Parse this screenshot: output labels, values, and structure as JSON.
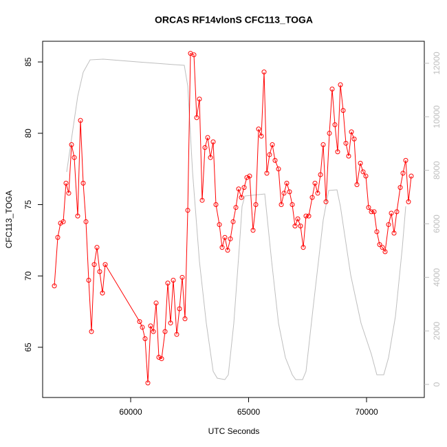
{
  "chart_data": {
    "type": "line",
    "title": "ORCAS RF14vlonS CFC113_TOGA",
    "x_label": "UTC Seconds",
    "y_label": "CFC113_TOGA",
    "xlim": [
      56268,
      72449
    ],
    "xticks": [
      60000,
      65000,
      70000
    ],
    "ylim": [
      61.48,
      86.45
    ],
    "yticks": [
      65,
      70,
      75,
      80,
      85
    ],
    "y2lim": [
      -488,
      12822
    ],
    "y2ticks": [
      0,
      2000,
      4000,
      6000,
      8000,
      10000,
      12000
    ],
    "series": [
      {
        "color": "#ff0000",
        "markers": true,
        "x": [
          56764,
          56909,
          57026,
          57143,
          57259,
          57376,
          57493,
          57609,
          57755,
          57872,
          57988,
          58105,
          58221,
          58338,
          58455,
          58571,
          58688,
          58804,
          58921,
          60379,
          60495,
          60612,
          60729,
          60845,
          60962,
          61079,
          61195,
          61312,
          61458,
          61574,
          61691,
          61807,
          61953,
          62070,
          62186,
          62303,
          62420,
          62536,
          62682,
          62799,
          62915,
          63032,
          63149,
          63265,
          63382,
          63498,
          63615,
          63761,
          63877,
          63994,
          64111,
          64227,
          64344,
          64461,
          64577,
          64694,
          64810,
          64927,
          65044,
          65189,
          65306,
          65423,
          65539,
          65656,
          65773,
          65889,
          66006,
          66122,
          66268,
          66385,
          66501,
          66618,
          66735,
          66851,
          66968,
          67085,
          67201,
          67318,
          67434,
          67551,
          67697,
          67814,
          67930,
          68047,
          68163,
          68280,
          68426,
          68542,
          68659,
          68775,
          68892,
          69009,
          69125,
          69242,
          69359,
          69475,
          69592,
          69738,
          69854,
          69971,
          70087,
          70204,
          70321,
          70437,
          70554,
          70671,
          70787,
          70933,
          71050,
          71166,
          71283,
          71429,
          71545,
          71662,
          71778,
          71895
        ],
        "values": [
          69.3,
          72.7,
          73.7,
          73.8,
          76.5,
          75.8,
          79.2,
          78.3,
          74.2,
          80.9,
          76.5,
          73.8,
          69.7,
          66.1,
          70.8,
          72.0,
          70.3,
          68.8,
          70.8,
          66.8,
          66.4,
          65.6,
          62.5,
          66.5,
          66.1,
          68.1,
          64.3,
          64.2,
          66.1,
          69.5,
          66.7,
          69.7,
          65.9,
          67.7,
          69.9,
          67.0,
          74.6,
          85.6,
          85.5,
          81.1,
          82.4,
          75.3,
          79.0,
          79.7,
          78.3,
          79.4,
          75.0,
          73.6,
          72.0,
          72.7,
          71.8,
          72.6,
          73.8,
          74.8,
          76.1,
          75.5,
          76.2,
          76.9,
          77.0,
          73.2,
          75.0,
          80.3,
          79.8,
          84.3,
          77.2,
          78.5,
          79.2,
          78.1,
          77.5,
          75.0,
          75.8,
          76.5,
          75.9,
          75.0,
          73.5,
          74.0,
          73.5,
          72.0,
          74.2,
          74.2,
          75.5,
          76.5,
          75.8,
          77.1,
          79.2,
          75.2,
          80.0,
          83.1,
          80.6,
          78.7,
          83.4,
          81.6,
          79.3,
          78.4,
          80.1,
          79.6,
          76.4,
          77.9,
          77.3,
          77.0,
          74.8,
          74.5,
          74.5,
          73.1,
          72.2,
          72.0,
          71.7,
          73.6,
          74.4,
          73.0,
          74.5,
          76.2,
          77.2,
          78.1,
          75.2,
          77.0
        ]
      },
      {
        "color": "#bebebe",
        "axis": "y2",
        "markers": false,
        "x": [
          57288,
          57755,
          57988,
          58280,
          58834,
          60291,
          62274,
          62420,
          62624,
          62915,
          63207,
          63498,
          63673,
          63994,
          64140,
          64373,
          64606,
          64723,
          64840,
          65685,
          65977,
          66268,
          66560,
          66851,
          66997,
          67289,
          67434,
          67726,
          68163,
          68396,
          68746,
          68892,
          69329,
          69767,
          70204,
          70437,
          70729,
          70933,
          71225,
          71516,
          71662
        ],
        "values": [
          7939,
          10766,
          11665,
          12127,
          12153,
          12050,
          11922,
          11151,
          7939,
          4599,
          2287,
          488,
          231,
          180,
          360,
          2287,
          5113,
          6655,
          7040,
          7117,
          4599,
          2287,
          1002,
          360,
          180,
          180,
          488,
          2801,
          6141,
          7246,
          7271,
          6655,
          4085,
          2287,
          1131,
          360,
          360,
          1002,
          2544,
          5113,
          6655
        ]
      }
    ]
  }
}
